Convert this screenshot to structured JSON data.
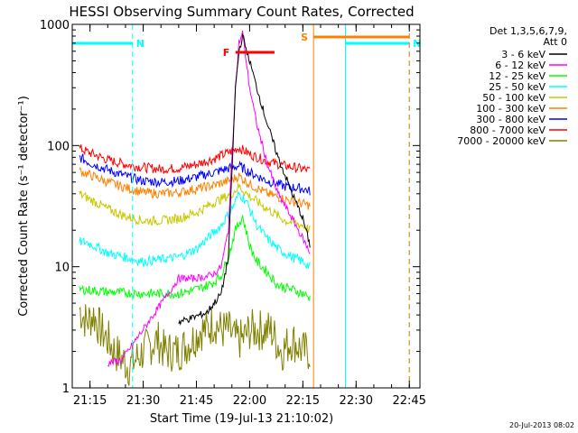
{
  "chart_data": {
    "type": "line",
    "title": "HESSI Observing Summary Count Rates, Corrected",
    "xlabel": "Start Time (19-Jul-13 21:10:02)",
    "ylabel": "Corrected Count Rate (s⁻¹ detector⁻¹)",
    "ylog": true,
    "ylim": [
      1,
      1000
    ],
    "xlim": [
      "21:10",
      "22:48"
    ],
    "x_tick_labels": [
      "21:15",
      "21:30",
      "21:45",
      "22:00",
      "22:15",
      "22:30",
      "22:45"
    ],
    "y_tick_labels": [
      "1",
      "10",
      "100",
      "1000"
    ],
    "legend": {
      "header": [
        "Det 1,3,5,6,7,9,",
        "Att 0"
      ],
      "placement": "right"
    },
    "series": [
      {
        "name": "3 - 6 keV",
        "color": "#000000",
        "x": [
          "21:40",
          "21:44",
          "21:48",
          "21:52",
          "21:54",
          "21:55",
          "21:56",
          "21:57",
          "21:58",
          "22:00",
          "22:02",
          "22:05",
          "22:08",
          "22:12",
          "22:15",
          "22:17"
        ],
        "y": [
          3.5,
          3.8,
          4.2,
          6,
          12,
          60,
          300,
          600,
          800,
          500,
          300,
          150,
          80,
          40,
          25,
          15
        ]
      },
      {
        "name": "6 - 12 keV",
        "color": "#ff00ff",
        "x": [
          "21:20",
          "21:24",
          "21:40",
          "21:44",
          "21:48",
          "21:50",
          "21:52",
          "21:54",
          "21:55",
          "21:56",
          "21:57",
          "21:58",
          "22:00",
          "22:02",
          "22:05",
          "22:08",
          "22:12",
          "22:15",
          "22:17"
        ],
        "y": [
          1.6,
          1.7,
          8,
          8,
          8.3,
          8.8,
          10,
          20,
          80,
          300,
          700,
          850,
          300,
          150,
          70,
          40,
          25,
          17,
          13
        ]
      },
      {
        "name": "12 - 25 keV",
        "color": "#00ff00",
        "x": [
          "21:12",
          "21:20",
          "21:30",
          "21:40",
          "21:45",
          "21:48",
          "21:50",
          "21:52",
          "21:54",
          "21:56",
          "21:58",
          "22:00",
          "22:02",
          "22:05",
          "22:08",
          "22:12",
          "22:15",
          "22:17"
        ],
        "y": [
          6.5,
          6.2,
          6,
          6,
          6.5,
          7,
          7.5,
          8.5,
          12,
          20,
          26,
          15,
          11,
          9,
          7,
          6.5,
          6,
          5.5
        ]
      },
      {
        "name": "25 - 50 keV",
        "color": "#00ffff",
        "x": [
          "21:12",
          "21:14",
          "21:20",
          "21:30",
          "21:40",
          "21:45",
          "21:48",
          "21:52",
          "21:55",
          "21:57",
          "21:59",
          "22:02",
          "22:05",
          "22:08",
          "22:12",
          "22:15",
          "22:17"
        ],
        "y": [
          16,
          16,
          13,
          11,
          12,
          14,
          17,
          22,
          30,
          40,
          35,
          22,
          17,
          14,
          12,
          11,
          10
        ]
      },
      {
        "name": "50 - 100 keV",
        "color": "#c8c800",
        "x": [
          "21:12",
          "21:15",
          "21:20",
          "21:25",
          "21:30",
          "21:35",
          "21:40",
          "21:45",
          "21:50",
          "21:55",
          "21:57",
          "22:00",
          "22:05",
          "22:10",
          "22:15",
          "22:17"
        ],
        "y": [
          40,
          36,
          30,
          26,
          24,
          24,
          25,
          28,
          34,
          40,
          46,
          38,
          30,
          24,
          22,
          20
        ]
      },
      {
        "name": "100 - 300 keV",
        "color": "#ff8000",
        "x": [
          "21:12",
          "21:15",
          "21:20",
          "21:25",
          "21:30",
          "21:35",
          "21:40",
          "21:45",
          "21:50",
          "21:55",
          "21:57",
          "22:00",
          "22:05",
          "22:10",
          "22:15",
          "22:17"
        ],
        "y": [
          62,
          57,
          50,
          45,
          41,
          40,
          41,
          44,
          47,
          52,
          56,
          48,
          40,
          36,
          33,
          32
        ]
      },
      {
        "name": "300 - 800 keV",
        "color": "#0000ff",
        "x": [
          "21:12",
          "21:15",
          "21:20",
          "21:25",
          "21:30",
          "21:35",
          "21:40",
          "21:45",
          "21:50",
          "21:55",
          "21:57",
          "22:00",
          "22:05",
          "22:10",
          "22:15",
          "22:17"
        ],
        "y": [
          80,
          72,
          63,
          56,
          51,
          50,
          51,
          55,
          60,
          66,
          68,
          60,
          51,
          46,
          44,
          42
        ]
      },
      {
        "name": "800 - 7000 keV",
        "color": "#ff0000",
        "x": [
          "21:12",
          "21:15",
          "21:20",
          "21:25",
          "21:30",
          "21:35",
          "21:40",
          "21:45",
          "21:50",
          "21:55",
          "21:57",
          "22:00",
          "22:05",
          "22:10",
          "22:15",
          "22:17"
        ],
        "y": [
          95,
          87,
          76,
          70,
          66,
          64,
          65,
          70,
          78,
          90,
          96,
          85,
          74,
          68,
          64,
          62
        ]
      },
      {
        "name": "7000 - 20000 keV",
        "color": "#808000",
        "x": [
          "21:12",
          "21:14",
          "21:16",
          "21:18",
          "21:20",
          "21:22",
          "21:26",
          "21:30",
          "21:34",
          "21:36",
          "21:40",
          "21:44",
          "21:46",
          "21:48",
          "21:50",
          "21:52",
          "21:54",
          "21:56",
          "21:58",
          "22:00",
          "22:03",
          "22:06",
          "22:09",
          "22:12",
          "22:15",
          "22:17"
        ],
        "y": [
          4.5,
          3.5,
          4,
          3,
          2.5,
          2,
          1.5,
          2,
          2.5,
          2,
          2,
          2.5,
          3,
          3,
          3.5,
          3,
          3,
          2.5,
          2.5,
          3,
          3,
          3,
          2,
          2.5,
          2,
          2
        ]
      }
    ],
    "flags": [
      {
        "label": "N",
        "color": "#00ffff",
        "start": "21:10",
        "end": "21:27"
      },
      {
        "label": "N",
        "color": "#00ffff",
        "start": "22:27",
        "end": "22:45"
      },
      {
        "label": "F",
        "color": "#ff0000",
        "start": "21:56",
        "end": "22:07"
      },
      {
        "label": "S",
        "color": "#ff8000",
        "start": "22:18",
        "end": "22:45"
      }
    ],
    "footer_stamp": "20-Jul-2013 08:02"
  }
}
